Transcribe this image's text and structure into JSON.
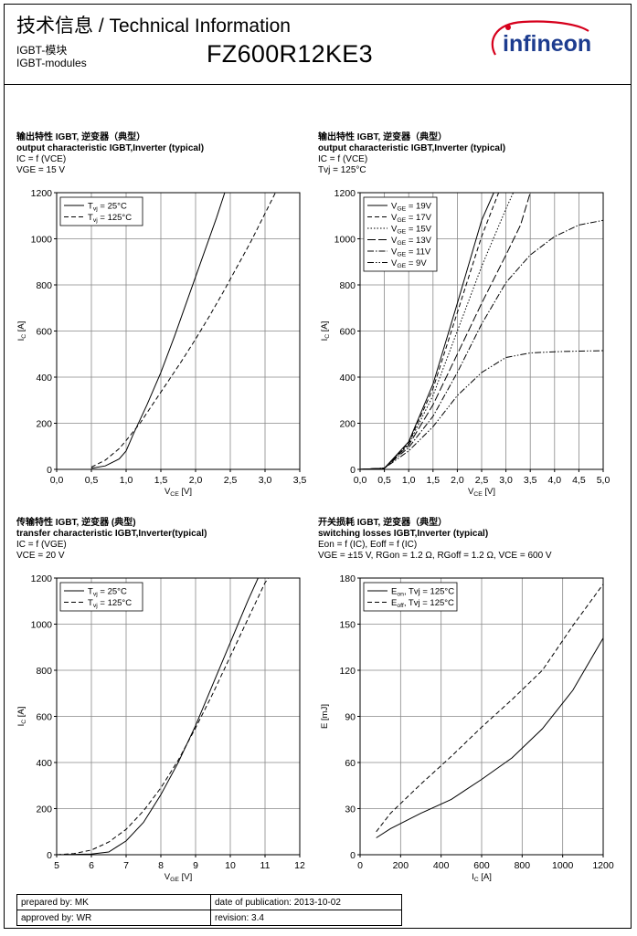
{
  "header": {
    "title": "技术信息 / Technical Information",
    "subtitle_cn": "IGBT-模块",
    "subtitle_en": "IGBT-modules",
    "part_number": "FZ600R12KE3",
    "logo_text": "infineon",
    "brand_color": "#d6001c"
  },
  "chart_titles": [
    {
      "cn": "输出特性 IGBT, 逆变器（典型）",
      "en": "output characteristic IGBT,Inverter (typical)",
      "line3": "IC = f (VCE)",
      "line4": "VGE = 15 V"
    },
    {
      "cn": "输出特性 IGBT, 逆变器（典型）",
      "en": "output characteristic IGBT,Inverter (typical)",
      "line3": "IC = f (VCE)",
      "line4": "Tvj = 125°C"
    },
    {
      "cn": "传输特性 IGBT, 逆变器 (典型)",
      "en": "transfer characteristic IGBT,Inverter(typical)",
      "line3": "IC = f (VGE)",
      "line4": "VCE = 20 V"
    },
    {
      "cn": "开关损耗 IGBT, 逆变器（典型）",
      "en": "switching losses IGBT,Inverter (typical)",
      "line3": "Eon = f (IC), Eoff = f (IC)",
      "line4": "VGE = ±15 V, RGon = 1.2 Ω, RGoff = 1.2 Ω, VCE = 600 V"
    }
  ],
  "chart_data": [
    {
      "type": "line",
      "title": "output characteristic IGBT,Inverter (typical)",
      "xlabel": "VCE [V]",
      "ylabel": "IC [A]",
      "xlim": [
        0,
        3.5
      ],
      "ylim": [
        0,
        1200
      ],
      "xticks": [
        0,
        0.5,
        1,
        1.5,
        2,
        2.5,
        3,
        3.5
      ],
      "xtick_labels": [
        "0,0",
        "0,5",
        "1,0",
        "1,5",
        "2,0",
        "2,5",
        "3,0",
        "3,5"
      ],
      "yticks": [
        0,
        200,
        400,
        600,
        800,
        1000,
        1200
      ],
      "ytick_labels": [
        "0",
        "200",
        "400",
        "600",
        "800",
        "1000",
        "1200"
      ],
      "legend": "top-left",
      "series": [
        {
          "name": "Tvj = 25°C",
          "dash": "solid",
          "x": [
            0.5,
            0.7,
            0.9,
            1.0,
            1.1,
            1.3,
            1.5,
            1.7,
            1.9,
            2.1,
            2.3,
            2.42
          ],
          "y": [
            5,
            15,
            45,
            80,
            150,
            280,
            420,
            580,
            750,
            920,
            1090,
            1200
          ]
        },
        {
          "name": "Tvj = 125°C",
          "dash": "dashed",
          "x": [
            0.5,
            0.7,
            0.9,
            1.0,
            1.2,
            1.4,
            1.6,
            1.8,
            2.0,
            2.2,
            2.4,
            2.6,
            2.8,
            3.0,
            3.15
          ],
          "y": [
            10,
            40,
            90,
            125,
            200,
            290,
            380,
            470,
            565,
            665,
            770,
            880,
            990,
            1110,
            1200
          ]
        }
      ]
    },
    {
      "type": "line",
      "title": "output characteristic IGBT,Inverter (typical)",
      "xlabel": "VCE [V]",
      "ylabel": "IC [A]",
      "xlim": [
        0,
        5
      ],
      "ylim": [
        0,
        1200
      ],
      "xticks": [
        0,
        0.5,
        1,
        1.5,
        2,
        2.5,
        3,
        3.5,
        4,
        4.5,
        5
      ],
      "xtick_labels": [
        "0,0",
        "0,5",
        "1,0",
        "1,5",
        "2,0",
        "2,5",
        "3,0",
        "3,5",
        "4,0",
        "4,5",
        "5,0"
      ],
      "yticks": [
        0,
        200,
        400,
        600,
        800,
        1000,
        1200
      ],
      "ytick_labels": [
        "0",
        "200",
        "400",
        "600",
        "800",
        "1000",
        "1200"
      ],
      "legend": "top-left",
      "series": [
        {
          "name": "VGE = 19V",
          "dash": "solid",
          "x": [
            0,
            0.5,
            1.0,
            1.5,
            2.0,
            2.5,
            2.75
          ],
          "y": [
            0,
            5,
            120,
            370,
            720,
            1080,
            1200
          ]
        },
        {
          "name": "VGE = 17V",
          "dash": "dashed",
          "x": [
            0,
            0.5,
            1.0,
            1.5,
            2.0,
            2.5,
            2.85
          ],
          "y": [
            0,
            5,
            115,
            350,
            680,
            1010,
            1200
          ]
        },
        {
          "name": "VGE = 15V",
          "dash": "dotted",
          "x": [
            0,
            0.5,
            1.0,
            1.5,
            2.0,
            2.5,
            3.0,
            3.15
          ],
          "y": [
            0,
            5,
            110,
            320,
            600,
            880,
            1130,
            1200
          ]
        },
        {
          "name": "VGE = 13V",
          "dash": "longdash",
          "x": [
            0,
            0.5,
            1.0,
            1.5,
            2.0,
            2.5,
            3.0,
            3.3,
            3.5
          ],
          "y": [
            0,
            5,
            105,
            280,
            500,
            720,
            930,
            1060,
            1200
          ]
        },
        {
          "name": "VGE = 11V",
          "dash": "dashdot",
          "x": [
            0,
            0.5,
            1.0,
            1.5,
            2.0,
            2.5,
            3.0,
            3.5,
            4.0,
            4.5,
            5.0
          ],
          "y": [
            0,
            5,
            95,
            230,
            420,
            630,
            810,
            930,
            1010,
            1060,
            1080
          ]
        },
        {
          "name": "VGE = 9V",
          "dash": "dashdotdot",
          "x": [
            0,
            0.5,
            1.0,
            1.5,
            2.0,
            2.5,
            3.0,
            3.5,
            4.0,
            4.5,
            5.0
          ],
          "y": [
            0,
            5,
            80,
            185,
            320,
            420,
            485,
            505,
            510,
            513,
            515
          ]
        }
      ]
    },
    {
      "type": "line",
      "title": "transfer characteristic IGBT,Inverter(typical)",
      "xlabel": "VGE [V]",
      "ylabel": "IC [A]",
      "xlim": [
        5,
        12
      ],
      "ylim": [
        0,
        1200
      ],
      "xticks": [
        5,
        6,
        7,
        8,
        9,
        10,
        11,
        12
      ],
      "xtick_labels": [
        "5",
        "6",
        "7",
        "8",
        "9",
        "10",
        "11",
        "12"
      ],
      "yticks": [
        0,
        200,
        400,
        600,
        800,
        1000,
        1200
      ],
      "ytick_labels": [
        "0",
        "200",
        "400",
        "600",
        "800",
        "1000",
        "1200"
      ],
      "legend": "top-left",
      "series": [
        {
          "name": "Tvj = 25°C",
          "dash": "solid",
          "x": [
            5,
            6,
            6.5,
            7,
            7.5,
            8,
            8.5,
            9,
            9.5,
            10,
            10.5,
            10.8
          ],
          "y": [
            0,
            3,
            12,
            60,
            140,
            260,
            400,
            560,
            740,
            920,
            1100,
            1200
          ]
        },
        {
          "name": "Tvj = 125°C",
          "dash": "dashed",
          "x": [
            5,
            5.5,
            6,
            6.5,
            7,
            7.5,
            8,
            8.5,
            9,
            9.5,
            10,
            10.5,
            11,
            11.1
          ],
          "y": [
            0,
            5,
            20,
            55,
            110,
            190,
            290,
            410,
            550,
            700,
            860,
            1020,
            1180,
            1200
          ]
        }
      ]
    },
    {
      "type": "line",
      "title": "switching losses IGBT,Inverter (typical)",
      "xlabel": "IC [A]",
      "ylabel": "E [mJ]",
      "xlim": [
        0,
        1200
      ],
      "ylim": [
        0,
        180
      ],
      "xticks": [
        0,
        200,
        400,
        600,
        800,
        1000,
        1200
      ],
      "xtick_labels": [
        "0",
        "200",
        "400",
        "600",
        "800",
        "1000",
        "1200"
      ],
      "yticks": [
        0,
        30,
        60,
        90,
        120,
        150,
        180
      ],
      "ytick_labels": [
        "0",
        "30",
        "60",
        "90",
        "120",
        "150",
        "180"
      ],
      "legend": "top-left",
      "series": [
        {
          "name": "Eon, Tvj = 125°C",
          "dash": "solid",
          "x": [
            80,
            150,
            300,
            450,
            600,
            750,
            900,
            1050,
            1200
          ],
          "y": [
            11,
            17,
            27,
            36,
            49,
            63,
            82,
            107,
            141
          ]
        },
        {
          "name": "Eoff, Tvj = 125°C",
          "dash": "dashed",
          "x": [
            80,
            150,
            300,
            450,
            600,
            750,
            900,
            1050,
            1200
          ],
          "y": [
            15,
            27,
            46,
            64,
            83,
            101,
            120,
            149,
            176
          ]
        }
      ]
    }
  ],
  "footer": {
    "prepared_by": "prepared by: MK",
    "approved_by": "approved by: WR",
    "date_of_publication": "date of publication: 2013-10-02",
    "revision": "revision: 3.4"
  }
}
